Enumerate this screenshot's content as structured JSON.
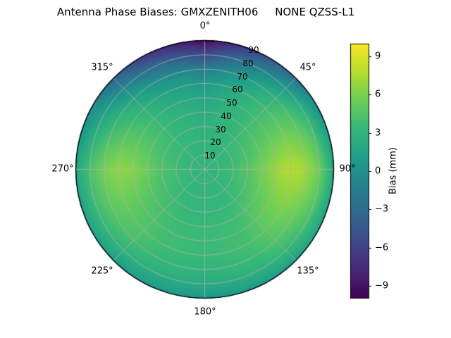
{
  "title": "Antenna Phase Biases: GMXZENITH06     NONE QZSS-L1",
  "polar": {
    "azimuth_labels": [
      "0°",
      "45°",
      "90°",
      "135°",
      "180°",
      "225°",
      "270°",
      "315°"
    ],
    "radial_labels": [
      "10",
      "20",
      "30",
      "40",
      "50",
      "60",
      "70",
      "80",
      "90"
    ]
  },
  "colorbar": {
    "label": "Bias (mm)",
    "tick_labels": [
      "9",
      "6",
      "3",
      "0",
      "−3",
      "−6",
      "−9"
    ]
  },
  "chart_data": {
    "type": "heatmap",
    "projection": "polar",
    "title": "Antenna Phase Biases: GMXZENITH06     NONE QZSS-L1",
    "azimuth_zero": "top",
    "azimuth_direction": "clockwise",
    "azimuth_ticks_deg": [
      0,
      45,
      90,
      135,
      180,
      225,
      270,
      315
    ],
    "radial_ticks": [
      10,
      20,
      30,
      40,
      50,
      60,
      70,
      80,
      90
    ],
    "azimuth_deg": [
      0,
      30,
      60,
      90,
      120,
      150,
      180,
      210,
      240,
      270,
      300,
      330
    ],
    "zenith_deg": [
      0,
      10,
      20,
      30,
      40,
      50,
      60,
      70,
      80,
      90
    ],
    "values_bias_mm": [
      [
        3.0,
        3.0,
        3.0,
        3.0,
        3.0,
        3.0,
        3.0,
        3.0,
        3.0,
        3.0,
        3.0,
        3.0
      ],
      [
        3.0,
        3.1,
        3.2,
        3.3,
        3.2,
        3.1,
        3.0,
        3.1,
        3.2,
        3.3,
        3.2,
        3.1
      ],
      [
        2.9,
        3.2,
        3.5,
        3.8,
        3.5,
        3.2,
        3.1,
        3.2,
        3.5,
        3.8,
        3.5,
        3.2
      ],
      [
        2.7,
        3.2,
        3.9,
        4.6,
        4.0,
        3.4,
        3.2,
        3.4,
        3.9,
        4.4,
        3.8,
        3.2
      ],
      [
        2.4,
        3.2,
        4.4,
        5.8,
        4.8,
        3.7,
        3.4,
        3.6,
        4.4,
        5.4,
        4.2,
        3.1
      ],
      [
        1.8,
        3.0,
        4.8,
        7.0,
        5.5,
        3.9,
        3.5,
        3.8,
        4.8,
        6.3,
        4.3,
        2.6
      ],
      [
        0.8,
        2.6,
        5.0,
        7.8,
        5.8,
        4.0,
        3.4,
        3.8,
        5.0,
        6.6,
        4.0,
        1.8
      ],
      [
        -1.5,
        1.5,
        4.5,
        7.2,
        5.2,
        3.6,
        3.0,
        3.4,
        4.6,
        5.8,
        3.2,
        0.2
      ],
      [
        -5.5,
        -1.0,
        3.0,
        5.5,
        4.0,
        2.8,
        2.2,
        2.6,
        3.4,
        4.2,
        1.5,
        -2.8
      ],
      [
        -9.5,
        -5.0,
        0.0,
        2.0,
        1.5,
        1.0,
        0.8,
        1.0,
        1.2,
        1.8,
        -0.5,
        -6.5
      ]
    ],
    "vmin": -10,
    "vmax": 10,
    "colormap": "viridis",
    "colormap_stops": [
      "#440154",
      "#482878",
      "#3e4989",
      "#31688e",
      "#26828e",
      "#1f9e89",
      "#35b779",
      "#6ece58",
      "#b5de2b",
      "#fde725"
    ],
    "colorbar_label": "Bias (mm)",
    "colorbar_ticks": [
      9,
      6,
      3,
      0,
      -3,
      -6,
      -9
    ],
    "grid": true,
    "grid_color": "#b0b0b0",
    "outline_color": "#000000"
  }
}
